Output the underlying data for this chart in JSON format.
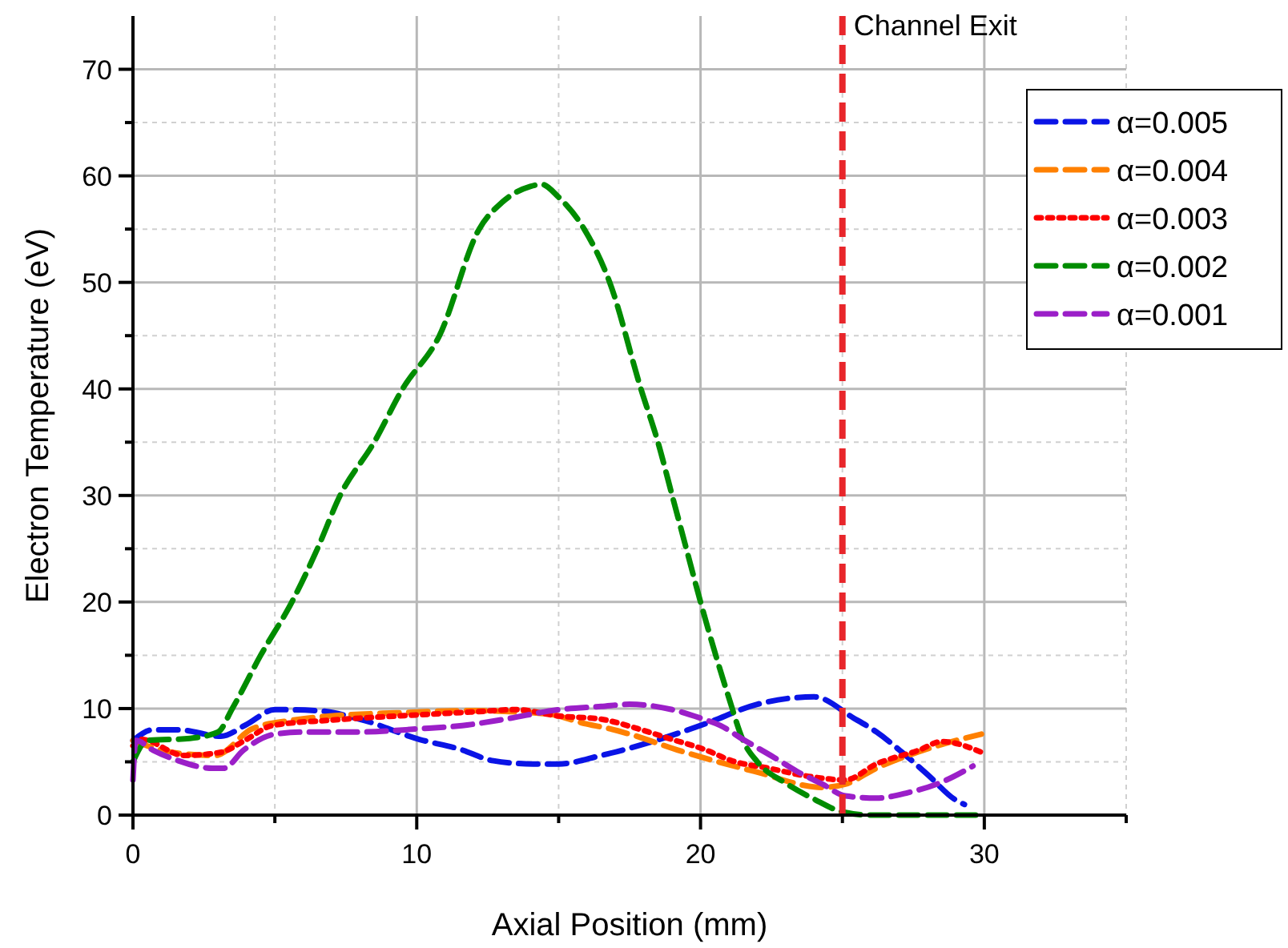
{
  "chart_data": {
    "type": "line",
    "xlabel": "Axial Position (mm)",
    "ylabel": "Electron Temperature (eV)",
    "xlim": [
      0,
      35
    ],
    "xticks": [
      0,
      {
        "value": 5,
        "label": null
      },
      10,
      {
        "value": 15,
        "label": null
      },
      20,
      {
        "value": 25,
        "label": null
      },
      30,
      {
        "value": 35,
        "label": null
      }
    ],
    "ylim": [
      0,
      75
    ],
    "yticks": [
      0,
      {
        "value": 5,
        "label": null
      },
      10,
      {
        "value": 15,
        "label": null
      },
      20,
      {
        "value": 25,
        "label": null
      },
      30,
      {
        "value": 35,
        "label": null
      },
      40,
      {
        "value": 45,
        "label": null
      },
      50,
      {
        "value": 55,
        "label": null
      },
      60,
      {
        "value": 65,
        "label": null
      },
      70
    ],
    "grid": true,
    "legend": "top right",
    "ref_lines": [
      {
        "axis": "x",
        "value": 25,
        "label": "Channel Exit",
        "color": "#e8262b",
        "line_style": "dashed"
      }
    ],
    "series": [
      {
        "name": "α=0.005",
        "color": "#0a14e6",
        "line_style": "dashed",
        "x": [
          0,
          0.7,
          1.6,
          3.1,
          4.0,
          5.0,
          6.5,
          8.0,
          10.1,
          11.5,
          12.7,
          14.1,
          15.0,
          16.5,
          18.3,
          20.2,
          22.0,
          24.0,
          25.4,
          26.2,
          27.1,
          28.0,
          29.0,
          29.3
        ],
        "values": [
          7,
          8,
          8,
          7.4,
          8.5,
          9.9,
          9.8,
          9,
          7.1,
          6.2,
          5.1,
          4.8,
          4.8,
          5.6,
          6.9,
          8.6,
          10.4,
          11.1,
          9.1,
          7.8,
          5.9,
          3.8,
          1.4,
          1
        ]
      },
      {
        "name": "α=0.004",
        "color": "#ff8000",
        "line_style": "dashed",
        "x": [
          0,
          0.5,
          1.6,
          2.9,
          4.2,
          5.6,
          7.5,
          9.3,
          11.8,
          14.6,
          15.9,
          16.8,
          17.5,
          19.2,
          21.9,
          24.3,
          25.1,
          26.2,
          28.1,
          29.9
        ],
        "values": [
          7,
          6.5,
          5.8,
          5.6,
          8.1,
          8.9,
          9.4,
          9.6,
          9.8,
          9.5,
          8.6,
          8.1,
          7.6,
          6.1,
          4.1,
          2.6,
          2.9,
          4.4,
          6.3,
          7.6
        ]
      },
      {
        "name": "α=0.003",
        "color": "#ff0000",
        "line_style": "dotted",
        "x": [
          0,
          0.3,
          1.8,
          3.1,
          4.0,
          4.9,
          6.9,
          9.3,
          12.1,
          13.5,
          15.0,
          16.5,
          17.8,
          19.0,
          20.2,
          21.1,
          22.4,
          23.9,
          25.1,
          26.2,
          27.7,
          28.5,
          29.9
        ],
        "values": [
          6.5,
          7.1,
          5.6,
          5.9,
          7.1,
          8.4,
          8.9,
          9.3,
          9.7,
          9.9,
          9.3,
          9.0,
          8.1,
          7.1,
          6.1,
          5.1,
          4.4,
          3.6,
          3.3,
          4.8,
          6.1,
          6.9,
          5.9
        ]
      },
      {
        "name": "α=0.002",
        "color": "#008c00",
        "line_style": "dashed",
        "x": [
          0,
          0.5,
          2,
          3,
          3.5,
          4.5,
          5.6,
          6.5,
          7.3,
          8.5,
          9.5,
          10.8,
          12.2,
          13,
          14,
          14.4,
          15,
          15.9,
          16.8,
          17.9,
          18.5,
          19,
          19.5,
          20,
          21,
          21.5,
          22,
          23,
          24,
          25,
          26,
          30
        ],
        "values": [
          5,
          7,
          7.2,
          7.8,
          10,
          15,
          20,
          25,
          30,
          35,
          40,
          45,
          55,
          57.5,
          59,
          59.2,
          58,
          55,
          50,
          40,
          35,
          30,
          25,
          20,
          11,
          7,
          5,
          3,
          1.5,
          0.3,
          0,
          0
        ]
      },
      {
        "name": "α=0.001",
        "color": "#9b1fc8",
        "line_style": "dashed",
        "x": [
          0,
          0.1,
          0.7,
          1.6,
          2.8,
          3.2,
          3.9,
          5.0,
          6.1,
          8.0,
          10.1,
          11.6,
          13.1,
          15.0,
          16.5,
          17.5,
          19.0,
          20.0,
          20.7,
          21.5,
          22.6,
          23.4,
          24.3,
          25.1,
          26.2,
          27.3,
          28.5,
          29.6
        ],
        "values": [
          3.3,
          7,
          6.1,
          5.1,
          4.4,
          4.4,
          6.1,
          7.6,
          7.8,
          7.8,
          8.1,
          8.4,
          9.0,
          9.9,
          10.2,
          10.4,
          9.9,
          9.1,
          8.4,
          7.1,
          5.4,
          4.1,
          2.9,
          1.8,
          1.6,
          2.1,
          3.1,
          4.6
        ]
      }
    ]
  }
}
